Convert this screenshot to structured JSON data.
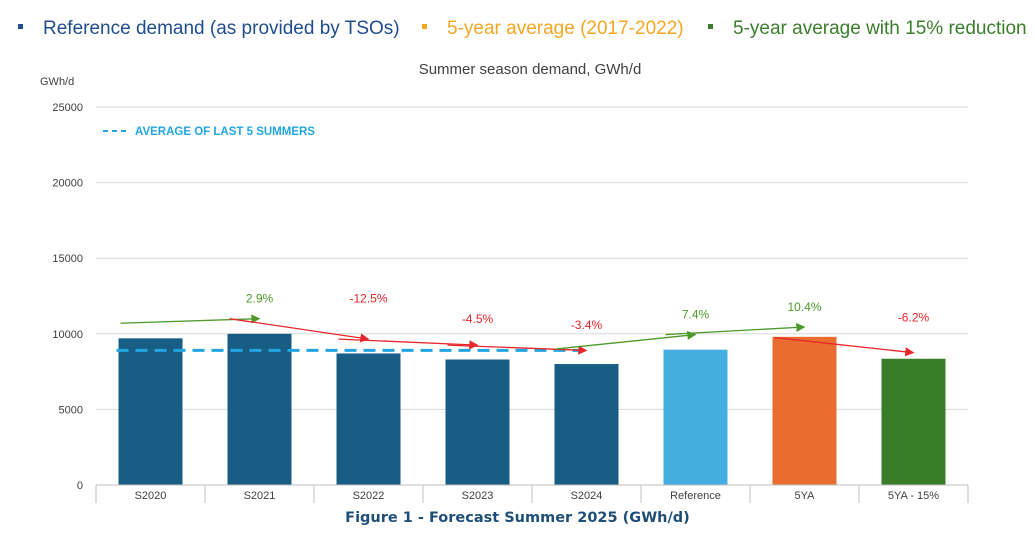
{
  "legend": [
    {
      "label": "Reference demand (as provided by TSOs)",
      "color": "#1f4e8c"
    },
    {
      "label": "5-year average (2017-2022)",
      "color": "#f5a623"
    },
    {
      "label": "5-year average with 15% reduction",
      "color": "#3a7d2c"
    }
  ],
  "figure_caption": "Figure 1 - Forecast Summer 2025 (GWh/d)",
  "chart_data": {
    "type": "bar",
    "title": "Summer season demand, GWh/d",
    "ylabel": "GWh/d",
    "xlabel": "",
    "ylim": [
      0,
      25000
    ],
    "yticks": [
      0,
      5000,
      10000,
      15000,
      20000,
      25000
    ],
    "grid": true,
    "categories": [
      "S2020",
      "S2021",
      "S2022",
      "S2023",
      "S2024",
      "Reference",
      "5YA",
      "5YA - 15%"
    ],
    "values": [
      9700,
      10000,
      8700,
      8300,
      8000,
      8950,
      9800,
      8350
    ],
    "bar_colors": [
      "#175d84",
      "#175d84",
      "#175d84",
      "#175d84",
      "#175d84",
      "#45aee0",
      "#ea6d30",
      "#3a7d28"
    ],
    "average_line": {
      "label": "AVERAGE OF LAST 5 SUMMERS",
      "value": 8900,
      "color": "#22a6e0"
    },
    "change_annotations": [
      {
        "label": "2.9%",
        "between": [
          "S2020",
          "S2021"
        ],
        "from_value": 10700,
        "to_value": 11000,
        "color": "#4c9a2a"
      },
      {
        "label": "-12.5%",
        "between": [
          "S2021",
          "S2022"
        ],
        "from_value": 11000,
        "to_value": 9650,
        "color": "#e8262a"
      },
      {
        "label": "-4.5%",
        "between": [
          "S2022",
          "S2023"
        ],
        "from_value": 9650,
        "to_value": 9250,
        "color": "#e8262a"
      },
      {
        "label": "-3.4%",
        "between": [
          "S2023",
          "S2024"
        ],
        "from_value": 9250,
        "to_value": 8900,
        "color": "#e8262a"
      },
      {
        "label": "7.4%",
        "between": [
          "S2024",
          "Reference"
        ],
        "from_value": 9000,
        "to_value": 9950,
        "color": "#4c9a2a"
      },
      {
        "label": "10.4%",
        "between": [
          "Reference",
          "5YA"
        ],
        "from_value": 9950,
        "to_value": 10450,
        "color": "#4c9a2a"
      },
      {
        "label": "-6.2%",
        "between": [
          "5YA",
          "5YA - 15%"
        ],
        "from_value": 9750,
        "to_value": 8750,
        "color": "#e8262a"
      }
    ]
  }
}
